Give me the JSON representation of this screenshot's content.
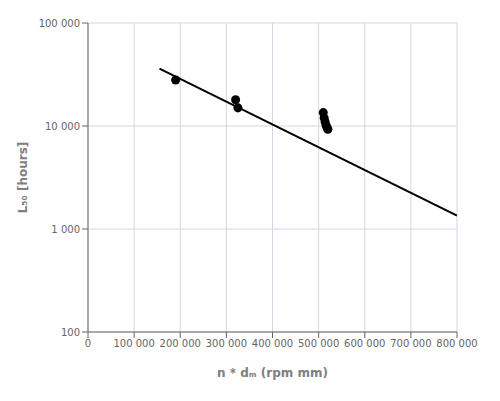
{
  "chart_data": {
    "type": "scatter",
    "xlabel": "n * dₘ (rpm mm)",
    "ylabel": "L₅₀ [hours]",
    "series": [
      {
        "type": "scatter",
        "color": "#000000",
        "x": [
          190000,
          320000,
          325000,
          510000,
          512000,
          514000,
          516000,
          518000,
          520000
        ],
        "values": [
          28000,
          18000,
          15000,
          13500,
          12000,
          11000,
          10200,
          9700,
          9300
        ]
      },
      {
        "type": "line",
        "color": "#000000",
        "x": [
          155000,
          800000
        ],
        "values": [
          36000,
          1350
        ]
      }
    ],
    "xlim": [
      0,
      800000
    ],
    "ylim": [
      100,
      100000
    ],
    "xticks": [
      0,
      {
        "value": 100000,
        "label": "100 000"
      },
      {
        "value": 200000,
        "label": "200 000"
      },
      {
        "value": 300000,
        "label": "300 000"
      },
      {
        "value": 400000,
        "label": "400 000"
      },
      {
        "value": 500000,
        "label": "500 000"
      },
      {
        "value": 600000,
        "label": "600 000"
      },
      {
        "value": 700000,
        "label": "700 000"
      },
      {
        "value": 800000,
        "label": "800 000"
      }
    ],
    "yticks": [
      100,
      {
        "value": 1000,
        "label": "1 000"
      },
      {
        "value": 10000,
        "label": "10 000"
      },
      {
        "value": 100000,
        "label": "100 000"
      }
    ],
    "log": "y",
    "grid": true
  }
}
